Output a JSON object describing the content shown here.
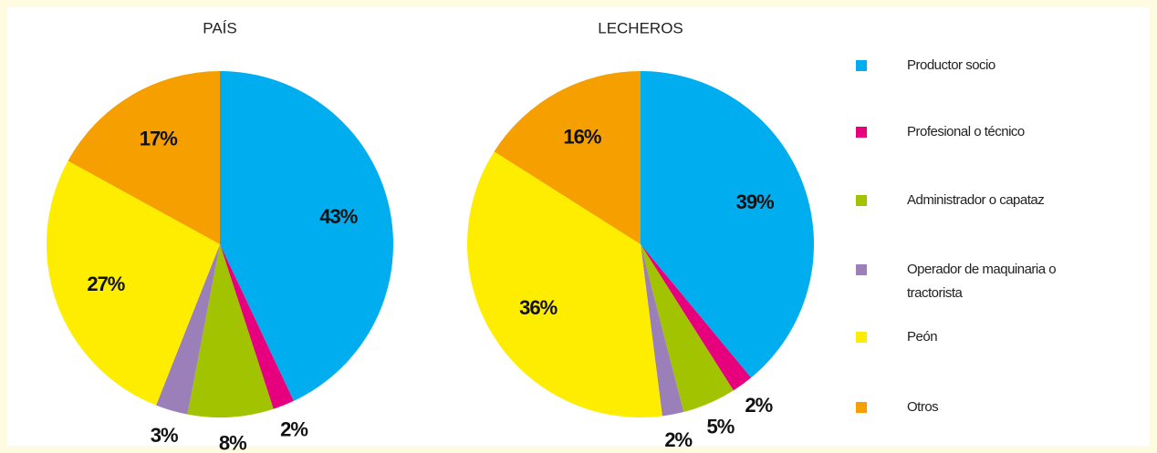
{
  "chart_data": [
    {
      "type": "pie",
      "title": "PAÍS",
      "values": [
        43,
        2,
        8,
        3,
        27,
        17
      ],
      "value_labels": [
        "43%",
        "2%",
        "8%",
        "3%",
        "27%",
        "17%"
      ]
    },
    {
      "type": "pie",
      "title": "LECHEROS",
      "values": [
        39,
        2,
        5,
        2,
        36,
        16
      ],
      "value_labels": [
        "39%",
        "2%",
        "5%",
        "2%",
        "36%",
        "16%"
      ]
    }
  ],
  "legend": {
    "categories": [
      "Productor socio",
      "Profesional o técnico",
      "Administrador o capataz",
      "Operador de maquinaria o tractorista",
      "Peón",
      "Otros"
    ],
    "colors": [
      "#00aeef",
      "#e6007e",
      "#a2c400",
      "#9b7fb8",
      "#ffed00",
      "#f5a000"
    ]
  }
}
